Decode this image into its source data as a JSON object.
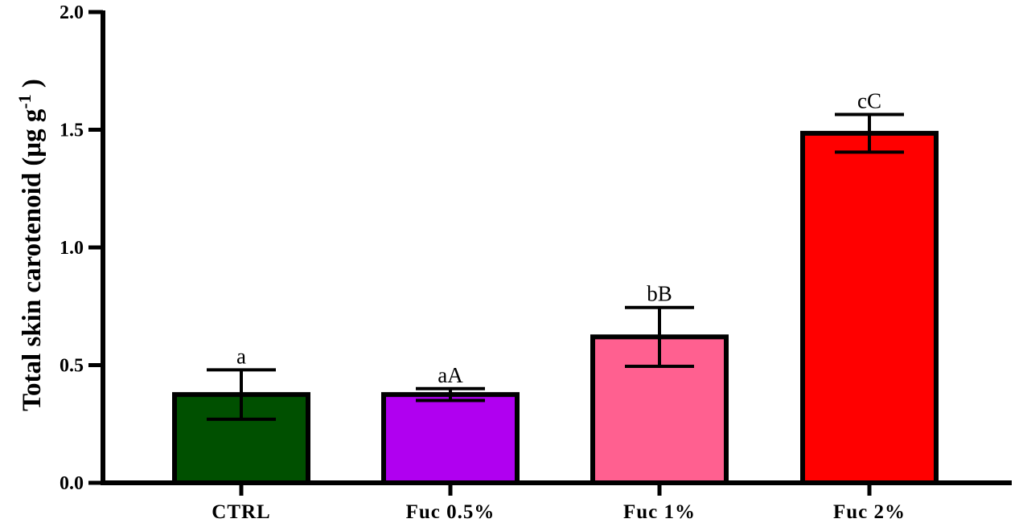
{
  "chart_data": {
    "type": "bar",
    "categories": [
      "CTRL",
      "Fuc 0.5%",
      "Fuc 1%",
      "Fuc 2%"
    ],
    "values": [
      0.375,
      0.375,
      0.62,
      1.485
    ],
    "errors": [
      0.105,
      0.025,
      0.125,
      0.08
    ],
    "annotations": [
      "a",
      "aA",
      "bB",
      "cC"
    ],
    "colors": [
      "#005000",
      "#b000f0",
      "#ff6090",
      "#ff0000"
    ],
    "ylabel_main": "Total skin carotenoid (μg g",
    "ylabel_sup": "-1",
    "ylabel_close": " )",
    "xlabel": "",
    "title": "",
    "ylim": [
      0,
      2.0
    ],
    "yticks": [
      0.0,
      0.5,
      1.0,
      1.5,
      2.0
    ],
    "ytick_labels": [
      "0.0",
      "0.5",
      "1.0",
      "1.5",
      "2.0"
    ],
    "grid": false,
    "legend": "none"
  }
}
